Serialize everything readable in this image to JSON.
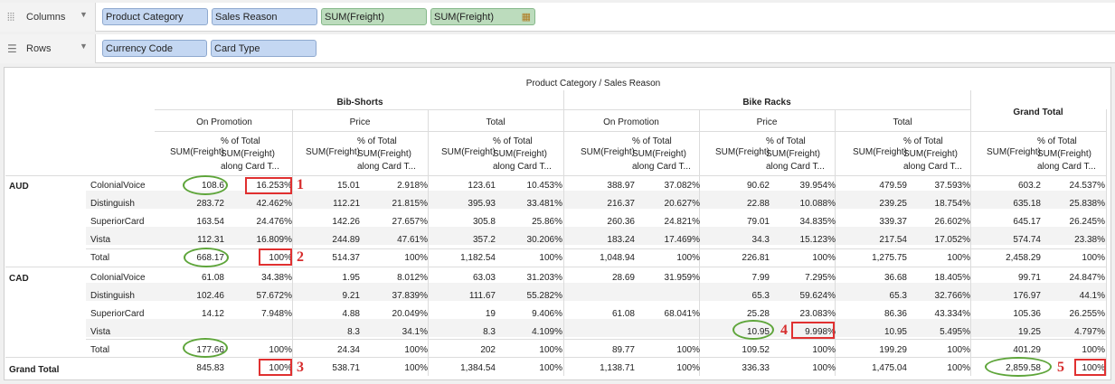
{
  "shelves": {
    "columns": {
      "label": "Columns",
      "pills": [
        {
          "text": "Product Category",
          "kind": "dimension"
        },
        {
          "text": "Sales Reason",
          "kind": "dimension"
        },
        {
          "text": "SUM(Freight)",
          "kind": "measure"
        },
        {
          "text": "SUM(Freight)",
          "kind": "measure",
          "icon": "table-calc-icon"
        }
      ]
    },
    "rows": {
      "label": "Rows",
      "pills": [
        {
          "text": "Currency Code",
          "kind": "dimension"
        },
        {
          "text": "Card Type",
          "kind": "dimension"
        }
      ]
    }
  },
  "table": {
    "top_header": "Product Category / Sales Reason",
    "categories": [
      "Bib-Shorts",
      "Bike Racks"
    ],
    "grand_total_header": "Grand Total",
    "reasons": [
      "On Promotion",
      "Price",
      "Total"
    ],
    "measure_label": "SUM(Freight)",
    "pct_label": [
      "% of Total",
      "SUM(Freight)",
      "along Card T..."
    ],
    "groups": [
      {
        "name": "AUD",
        "rows": [
          {
            "label": "ColonialVoice",
            "cells": [
              "108.6",
              "16.253%",
              "15.01",
              "2.918%",
              "123.61",
              "10.453%",
              "388.97",
              "37.082%",
              "90.62",
              "39.954%",
              "479.59",
              "37.593%",
              "603.2",
              "24.537%"
            ]
          },
          {
            "label": "Distinguish",
            "cells": [
              "283.72",
              "42.462%",
              "112.21",
              "21.815%",
              "395.93",
              "33.481%",
              "216.37",
              "20.627%",
              "22.88",
              "10.088%",
              "239.25",
              "18.754%",
              "635.18",
              "25.838%"
            ]
          },
          {
            "label": "SuperiorCard",
            "cells": [
              "163.54",
              "24.476%",
              "142.26",
              "27.657%",
              "305.8",
              "25.86%",
              "260.36",
              "24.821%",
              "79.01",
              "34.835%",
              "339.37",
              "26.602%",
              "645.17",
              "26.245%"
            ]
          },
          {
            "label": "Vista",
            "cells": [
              "112.31",
              "16.809%",
              "244.89",
              "47.61%",
              "357.2",
              "30.206%",
              "183.24",
              "17.469%",
              "34.3",
              "15.123%",
              "217.54",
              "17.052%",
              "574.74",
              "23.38%"
            ]
          },
          {
            "label": "Total",
            "cells": [
              "668.17",
              "100%",
              "514.37",
              "100%",
              "1,182.54",
              "100%",
              "1,048.94",
              "100%",
              "226.81",
              "100%",
              "1,275.75",
              "100%",
              "2,458.29",
              "100%"
            ]
          }
        ]
      },
      {
        "name": "CAD",
        "rows": [
          {
            "label": "ColonialVoice",
            "cells": [
              "61.08",
              "34.38%",
              "1.95",
              "8.012%",
              "63.03",
              "31.203%",
              "28.69",
              "31.959%",
              "7.99",
              "7.295%",
              "36.68",
              "18.405%",
              "99.71",
              "24.847%"
            ]
          },
          {
            "label": "Distinguish",
            "cells": [
              "102.46",
              "57.672%",
              "9.21",
              "37.839%",
              "111.67",
              "55.282%",
              "",
              "",
              "65.3",
              "59.624%",
              "65.3",
              "32.766%",
              "176.97",
              "44.1%"
            ]
          },
          {
            "label": "SuperiorCard",
            "cells": [
              "14.12",
              "7.948%",
              "4.88",
              "20.049%",
              "19",
              "9.406%",
              "61.08",
              "68.041%",
              "25.28",
              "23.083%",
              "86.36",
              "43.334%",
              "105.36",
              "26.255%"
            ]
          },
          {
            "label": "Vista",
            "cells": [
              "",
              "",
              "8.3",
              "34.1%",
              "8.3",
              "4.109%",
              "",
              "",
              "10.95",
              "9.998%",
              "10.95",
              "5.495%",
              "19.25",
              "4.797%"
            ]
          },
          {
            "label": "Total",
            "cells": [
              "177.66",
              "100%",
              "24.34",
              "100%",
              "202",
              "100%",
              "89.77",
              "100%",
              "109.52",
              "100%",
              "199.29",
              "100%",
              "401.29",
              "100%"
            ]
          }
        ]
      }
    ],
    "grand_total_row": {
      "label": "Grand Total",
      "cells": [
        "845.83",
        "100%",
        "538.71",
        "100%",
        "1,384.54",
        "100%",
        "1,138.71",
        "100%",
        "336.33",
        "100%",
        "1,475.04",
        "100%",
        "2,859.58",
        "100%"
      ]
    }
  },
  "annotations": [
    "1",
    "2",
    "3",
    "4",
    "5"
  ],
  "colors": {
    "oval": "#5ea53a",
    "box": "#e03030",
    "number": "#d62d2d",
    "dimension_pill": "#c4d7f2",
    "measure_pill": "#bcdcbd"
  }
}
